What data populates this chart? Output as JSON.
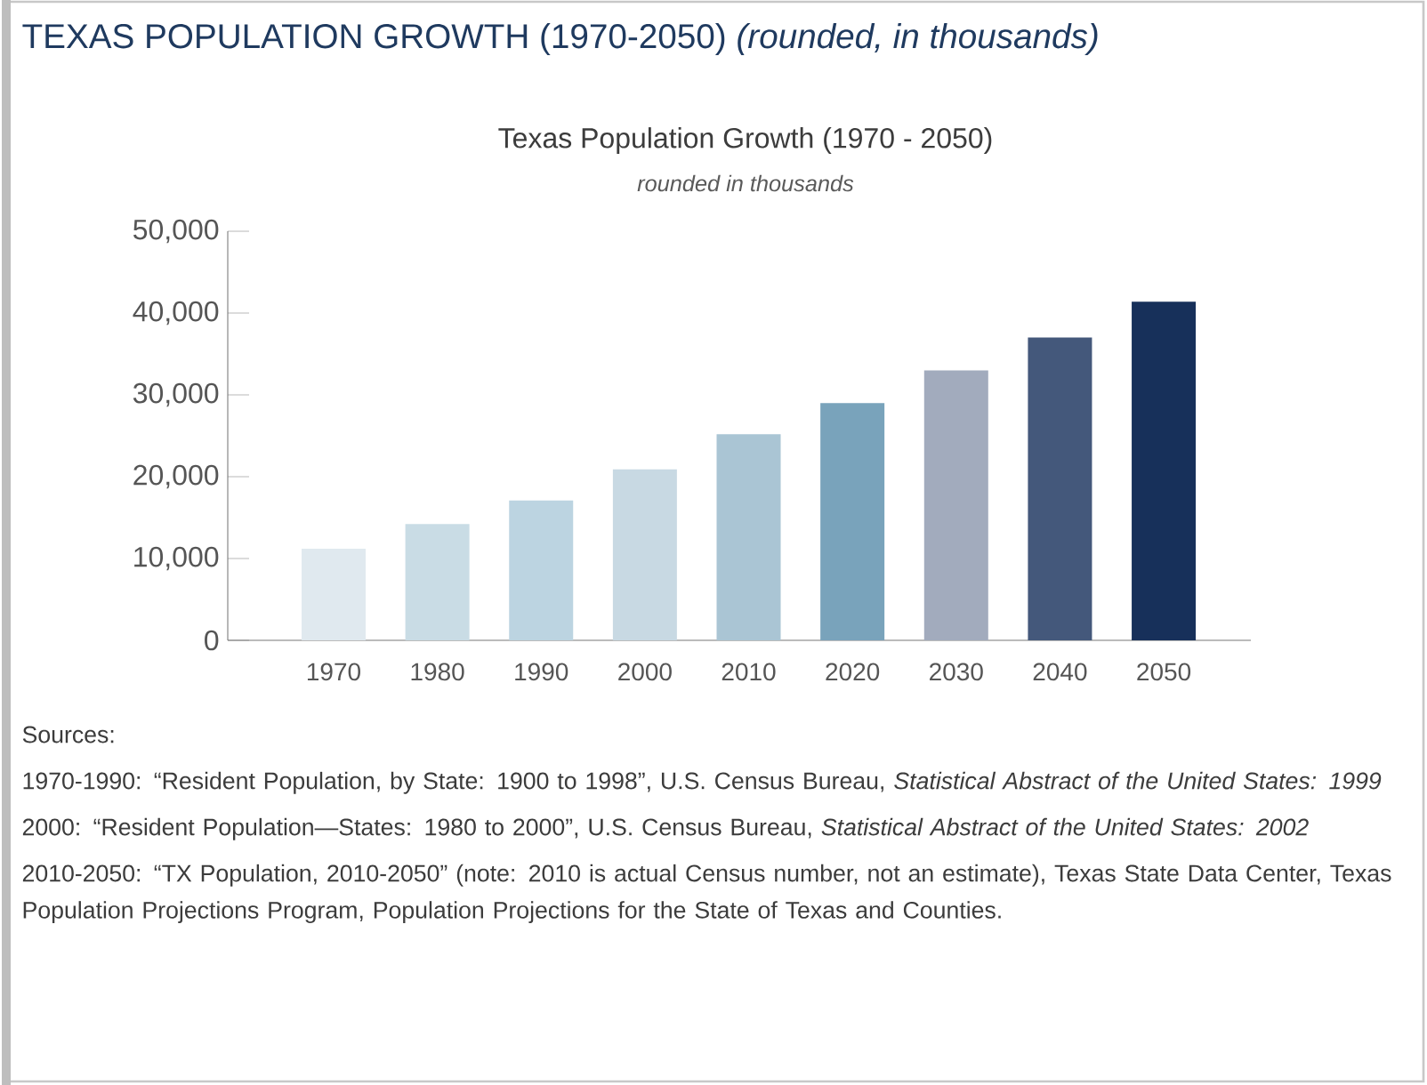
{
  "chart_data": {
    "type": "bar",
    "title": "Texas Population Growth (1970 - 2050)",
    "subtitle": "rounded in thousands",
    "categories": [
      "1970",
      "1980",
      "1990",
      "2000",
      "2010",
      "2020",
      "2030",
      "2040",
      "2050"
    ],
    "values": [
      11200,
      14200,
      17100,
      20900,
      25200,
      29000,
      33000,
      37000,
      41400
    ],
    "colors": [
      "#e0e9ef",
      "#c9dce5",
      "#bcd4e1",
      "#c8d9e3",
      "#aac5d4",
      "#79a3bb",
      "#a2abbd",
      "#44587b",
      "#17305a"
    ],
    "ylim": [
      0,
      50000
    ],
    "yticks": [
      0,
      {
        "value": 10000,
        "label": "10,000"
      },
      {
        "value": 20000,
        "label": "20,000"
      },
      {
        "value": 30000,
        "label": "30,000"
      },
      {
        "value": 40000,
        "label": "40,000"
      },
      {
        "value": 50000,
        "label": "50,000"
      }
    ],
    "annotations": [
      "TEXAS POPULATION GROWTH (1970-2050) *(rounded, in thousands)*",
      "Sources:",
      "1970-1990: “Resident Population, by State: 1900 to 1998”, U.S. Census Bureau, *Statistical Abstract of the United States: 1999*",
      "2000: “Resident Population—States: 1980 to 2000”, U.S. Census Bureau, *Statistical Abstract of the United States: 2002*",
      "2010-2050: “TX Population, 2010-2050” (note: 2010 is actual Census number, not an estimate), Texas State Data Center, Texas Population Projections Program, Population Projections for the State of Texas and Counties."
    ]
  }
}
